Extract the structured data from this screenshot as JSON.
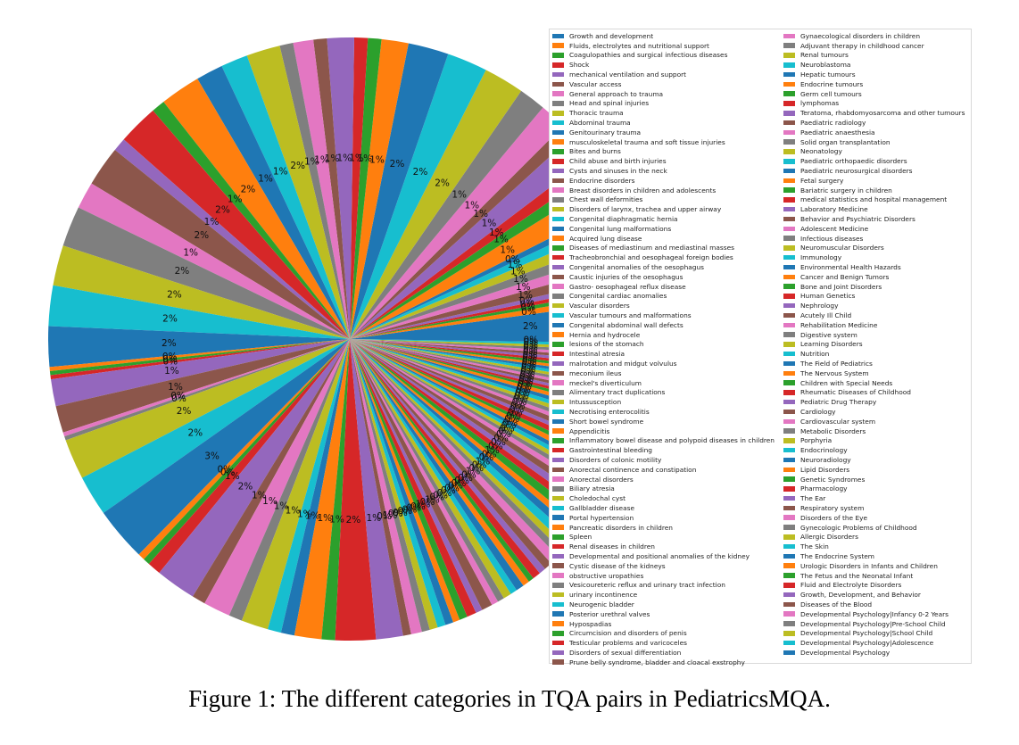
{
  "palette": [
    "#1f77b4",
    "#ff7f0e",
    "#2ca02c",
    "#d62728",
    "#9467bd",
    "#8c564b",
    "#e377c2",
    "#7f7f7f",
    "#bcbd22",
    "#17becf"
  ],
  "caption": "Figure 1: The different categories in TQA pairs in PediatricsMQA.",
  "chart_data": {
    "type": "pie",
    "title": "",
    "start_angle_deg": 0,
    "direction": "counterclockwise",
    "categories": [
      "Growth and development",
      "Fluids, electrolytes and nutritional support",
      "Coagulopathies and surgical infectious diseases",
      "Shock",
      "mechanical ventilation and support",
      "Vascular access",
      "General approach to trauma",
      "Head and spinal injuries",
      "Thoracic trauma",
      "Abdominal trauma",
      "Genitourinary trauma",
      "musculoskeletal trauma and soft tissue injuries",
      "Bites and burns",
      "Child abuse and birth injuries",
      "Cysts and sinuses in the neck",
      "Endocrine disorders",
      "Breast disorders in children and adolescents",
      "Chest wall deformities",
      "Disorders of larynx, trachea and upper airway",
      "Congenital diaphragmatic hernia",
      "Congenital lung malformations",
      "Acquired lung disease",
      "Diseases of mediastinum and mediastinal masses",
      "Tracheobronchial and oesophageal foreign bodies",
      "Congenital anomalies of the oesophagus",
      "Caustic injuries of the oesophagus",
      "Gastro- oesophageal reflux disease",
      "Congenital cardiac anomalies",
      "Vascular disorders",
      "Vascular tumours and malformations",
      "Congenital abdominal wall defects",
      "Hernia and hydrocele",
      "lesions of the stomach",
      "Intestinal atresia",
      "malrotation and midgut volvulus",
      "meconium ileus",
      "meckel's diverticulum",
      "Alimentary tract duplications",
      "Intussusception",
      "Necrotising enterocolitis",
      "Short bowel syndrome",
      "Appendicitis",
      "Inflammatory bowel disease and polypoid diseases in children",
      "Gastrointestinal bleeding",
      "Disorders of colonic motility",
      "Anorectal continence and constipation",
      "Anorectal disorders",
      "Biliary atresia",
      "Choledochal cyst",
      "Gallbladder disease",
      "Portal hypertension",
      "Pancreatic disorders in children",
      "Spleen",
      "Renal diseases in children",
      "Developmental and positional anomalies of the kidney",
      "Cystic disease of the kidneys",
      "obstructive uropathies",
      "Vesicoureteric reflux and urinary tract infection",
      "urinary incontinence",
      "Neurogenic bladder",
      "Posterior urethral valves",
      "Hypospadias",
      "Circumcision and disorders of penis",
      "Testicular problems and varicoceles",
      "Disorders of sexual differentiation",
      "Prune belly syndrome, bladder and cloacal exstrophy",
      "Gynaecological disorders in children",
      "Adjuvant therapy in childhood cancer",
      "Renal tumours",
      "Neuroblastoma",
      "Hepatic tumours",
      "Endocrine tumours",
      "Germ cell tumours",
      "lymphomas",
      "Teratoma, rhabdomyosarcoma and other tumours",
      "Paediatric radiology",
      "Paediatric anaesthesia",
      "Solid organ transplantation",
      "Neonatology",
      "Paediatric orthopaedic disorders",
      "Paediatric neurosurgical disorders",
      "Fetal surgery",
      "Bariatric surgery in children",
      "medical statistics and hospital management",
      "Laboratory Medicine",
      "Behavior and Psychiatric Disorders",
      "Adolescent Medicine",
      "Infectious diseases",
      "Neuromuscular Disorders",
      "Immunology",
      "Environmental Health Hazards",
      "Cancer and Benign Tumors",
      "Bone and Joint Disorders",
      "Human Genetics",
      "Nephrology",
      "Acutely Ill Child",
      "Rehabilitation Medicine",
      "Digestive system",
      "Learning Disorders",
      "Nutrition",
      "The Field of Pediatrics",
      "The Nervous System",
      "Children with Special Needs",
      "Rheumatic Diseases of Childhood",
      "Pediatric Drug Therapy",
      "Cardiology",
      "Cardiovascular system",
      "Metabolic Disorders",
      "Porphyria",
      "Endocrinology",
      "Neuroradiology",
      "Lipid Disorders",
      "Genetic Syndromes",
      "Pharmacology",
      "The Ear",
      "Respiratory system",
      "Disorders of the Eye",
      "Gynecologic Problems of Childhood",
      "Allergic Disorders",
      "The Skin",
      "The Endocrine System",
      "Urologic Disorders in Infants and Children",
      "The Fetus and the Neonatal Infant",
      "Fluid and Electrolyte Disorders",
      "Growth, Development, and Behavior",
      "Diseases of the Blood",
      "Developmental Psychology|Infancy 0-2 Years",
      "Developmental Psychology|Pre-School Child",
      "Developmental Psychology|School Child",
      "Developmental Psychology|Adolescence",
      "Developmental Psychology"
    ],
    "values": [
      3.0,
      0.6,
      0.4,
      0.4,
      0.5,
      1.0,
      1.0,
      1.0,
      1.0,
      0.8,
      0.6,
      2.0,
      1.0,
      1.0,
      2.0,
      1.0,
      2.0,
      2.0,
      3.0,
      3.0,
      3.0,
      2.0,
      1.0,
      1.0,
      2.0,
      1.0,
      1.5,
      1.0,
      2.5,
      2.0,
      2.0,
      3.0,
      1.0,
      3.0,
      1.0,
      3.0,
      2.0,
      3.0,
      3.0,
      3.0,
      3.0,
      0.3,
      0.3,
      0.3,
      2.0,
      2.0,
      0.3,
      0.3,
      3.0,
      3.0,
      4.0,
      0.5,
      0.5,
      1.0,
      3.0,
      1.0,
      2.0,
      1.0,
      2.0,
      1.0,
      1.0,
      2.0,
      1.0,
      3.0,
      2.0,
      0.6,
      0.8,
      0.6,
      0.6,
      0.6,
      0.6,
      0.5,
      0.6,
      0.7,
      0.5,
      0.8,
      0.5,
      0.5,
      0.6,
      0.5,
      0.6,
      0.5,
      0.4,
      0.6,
      0.5,
      0.6,
      0.7,
      0.5,
      0.5,
      0.7,
      0.6,
      0.5,
      0.7,
      0.6,
      0.6,
      0.6,
      0.5,
      0.4,
      0.4,
      0.4,
      0.4,
      0.5,
      0.4,
      0.5,
      0.4,
      0.5,
      0.4,
      0.4,
      0.4,
      0.4,
      0.4,
      0.4,
      0.3,
      0.3,
      0.3,
      0.3,
      0.3,
      0.3,
      0.3,
      0.3,
      0.3,
      0.3,
      0.3,
      0.3,
      0.3,
      0.3,
      0.3,
      0.3,
      0.3,
      0.3,
      0.3
    ],
    "legend_position": "right"
  }
}
